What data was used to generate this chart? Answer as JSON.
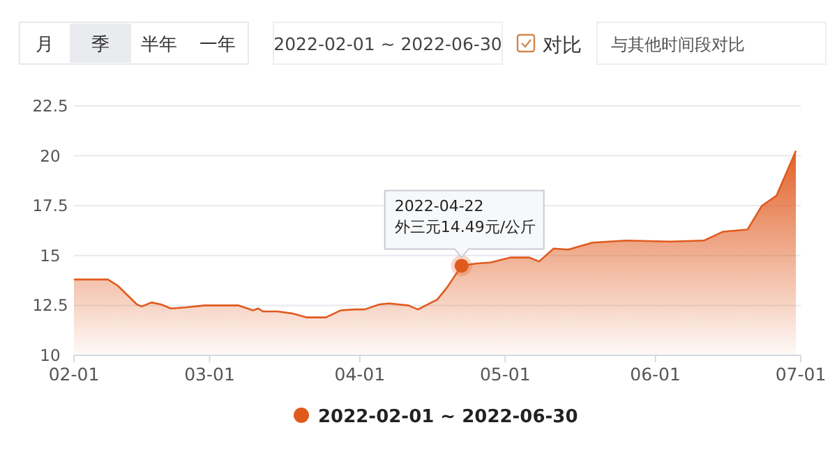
{
  "chart_data": {
    "type": "area",
    "x": [
      "2022-02-01",
      "2022-02-08",
      "2022-02-10",
      "2022-02-14",
      "2022-02-15",
      "2022-02-17",
      "2022-02-19",
      "2022-02-21",
      "2022-02-24",
      "2022-02-28",
      "2022-03-07",
      "2022-03-10",
      "2022-03-11",
      "2022-03-12",
      "2022-03-15",
      "2022-03-18",
      "2022-03-21",
      "2022-03-25",
      "2022-03-28",
      "2022-03-31",
      "2022-04-02",
      "2022-04-05",
      "2022-04-07",
      "2022-04-11",
      "2022-04-13",
      "2022-04-17",
      "2022-04-19",
      "2022-04-22",
      "2022-04-25",
      "2022-04-28",
      "2022-05-02",
      "2022-05-06",
      "2022-05-08",
      "2022-05-11",
      "2022-05-14",
      "2022-05-19",
      "2022-05-26",
      "2022-06-04",
      "2022-06-11",
      "2022-06-15",
      "2022-06-20",
      "2022-06-23",
      "2022-06-26",
      "2022-06-30"
    ],
    "series": [
      {
        "name": "2022-02-01 ~ 2022-06-30",
        "color": "#e05a1e",
        "values": [
          13.8,
          13.8,
          13.5,
          12.55,
          12.45,
          12.65,
          12.55,
          12.35,
          12.4,
          12.5,
          12.5,
          12.25,
          12.35,
          12.2,
          12.2,
          12.1,
          11.9,
          11.9,
          12.25,
          12.3,
          12.3,
          12.55,
          12.6,
          12.5,
          12.3,
          12.8,
          13.4,
          14.49,
          14.6,
          14.65,
          14.9,
          14.9,
          14.7,
          15.35,
          15.3,
          15.65,
          15.75,
          15.7,
          15.75,
          16.2,
          16.3,
          17.5,
          18.0,
          20.25
        ]
      }
    ],
    "xlim": [
      "2022-02-01",
      "2022-07-01"
    ],
    "xticks": [
      {
        "value": "2022-02-01",
        "label": "02-01"
      },
      {
        "value": "2022-03-01",
        "label": "03-01"
      },
      {
        "value": "2022-04-01",
        "label": "04-01"
      },
      {
        "value": "2022-05-01",
        "label": "05-01"
      },
      {
        "value": "2022-06-01",
        "label": "06-01"
      },
      {
        "value": "2022-07-01",
        "label": "07-01"
      }
    ],
    "ylim": [
      10,
      22.5
    ],
    "yticks": [
      10,
      12.5,
      15,
      17.5,
      20,
      22.5
    ],
    "grid": "y",
    "legend": "bottom",
    "marker": "none",
    "annotations": [
      {
        "text": "2022-04-22\n外三元14.49元/公斤",
        "x": "2022-04-22",
        "y": 14.49
      },
      "月",
      "季",
      "半年",
      "一年",
      "2022-02-01 ~ 2022-06-30",
      "对比",
      "与其他时间段对比"
    ]
  }
}
